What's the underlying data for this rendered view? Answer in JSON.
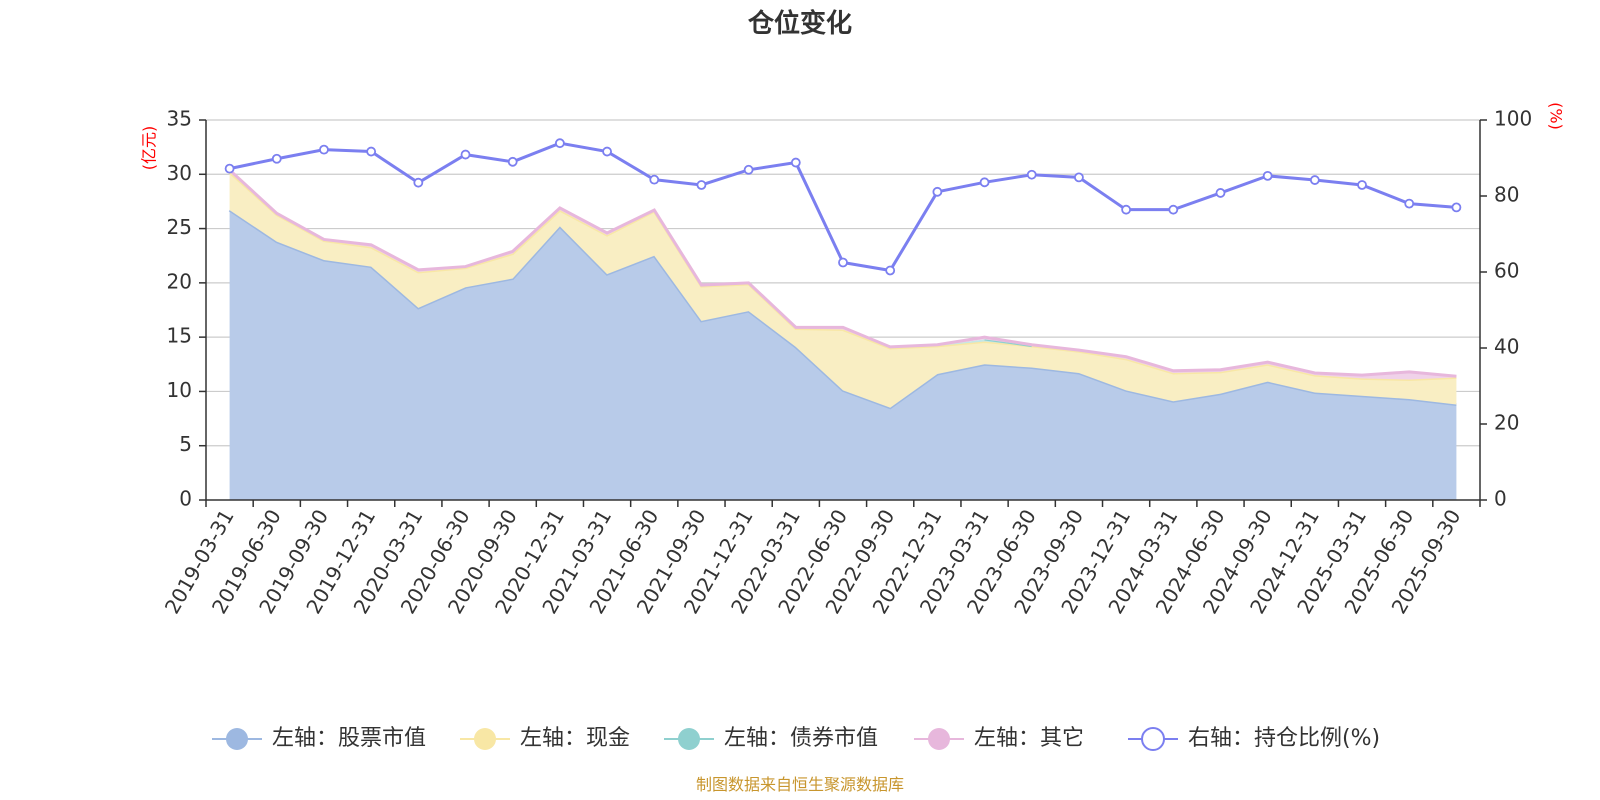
{
  "chart_data": {
    "type": "area",
    "title": "仓位变化",
    "left_axis_unit": "(亿元)",
    "right_axis_unit": "(%)",
    "ylim_left": [
      0,
      35
    ],
    "yticks_left": [
      0,
      5,
      10,
      15,
      20,
      25,
      30,
      35
    ],
    "ylim_right": [
      0,
      100
    ],
    "yticks_right": [
      0,
      20,
      40,
      60,
      80,
      100
    ],
    "categories": [
      "2019-03-31",
      "2019-06-30",
      "2019-09-30",
      "2019-12-31",
      "2020-03-31",
      "2020-06-30",
      "2020-09-30",
      "2020-12-31",
      "2021-03-31",
      "2021-06-30",
      "2021-09-30",
      "2021-12-31",
      "2022-03-31",
      "2022-06-30",
      "2022-09-30",
      "2022-12-31",
      "2023-03-31",
      "2023-06-30",
      "2023-09-30",
      "2023-12-31",
      "2024-03-31",
      "2024-06-30",
      "2024-09-30",
      "2024-12-31",
      "2025-03-31",
      "2025-06-30",
      "2025-09-30"
    ],
    "series": [
      {
        "name": "左轴：股票市值",
        "axis": "left",
        "color": "#9db8e1",
        "fill": "#b8cbe9",
        "values": [
          26.7,
          23.8,
          22.1,
          21.5,
          17.7,
          19.6,
          20.4,
          25.2,
          20.8,
          22.5,
          16.5,
          17.4,
          14.1,
          10.1,
          8.5,
          11.6,
          12.5,
          12.2,
          11.7,
          10.1,
          9.1,
          9.8,
          10.9,
          9.9,
          9.6,
          9.3,
          8.8
        ]
      },
      {
        "name": "左轴：现金",
        "axis": "left",
        "color": "#f8e7a5",
        "fill": "#f9eec3",
        "values": [
          3.5,
          2.5,
          1.8,
          1.8,
          3.3,
          1.8,
          2.3,
          1.5,
          3.6,
          4.1,
          3.2,
          2.5,
          1.7,
          5.6,
          5.5,
          2.6,
          2.1,
          2.0,
          2.0,
          2.9,
          2.6,
          2.0,
          1.6,
          1.6,
          1.6,
          1.8,
          2.5
        ]
      },
      {
        "name": "左轴：债券市值",
        "axis": "left",
        "color": "#8fd0cf",
        "fill": "#c5e7e6",
        "values": [
          0,
          0,
          0,
          0,
          0,
          0,
          0,
          0,
          0,
          0,
          0,
          0,
          0,
          0,
          0,
          0,
          0.2,
          0,
          0,
          0,
          0,
          0,
          0,
          0,
          0,
          0,
          0
        ]
      },
      {
        "name": "左轴：其它",
        "axis": "left",
        "color": "#e7b7dc",
        "fill": "#f0d2e9",
        "values": [
          0.2,
          0.1,
          0.1,
          0.2,
          0.2,
          0.1,
          0.2,
          0.2,
          0.2,
          0.1,
          0.1,
          0.1,
          0.1,
          0.2,
          0.1,
          0.1,
          0.2,
          0.1,
          0.1,
          0.2,
          0.2,
          0.2,
          0.2,
          0.2,
          0.3,
          0.7,
          0.1
        ]
      },
      {
        "name": "右轴：持仓比例(%)",
        "axis": "right",
        "color": "#7b7ff0",
        "values": [
          87.2,
          89.8,
          92.2,
          91.7,
          83.5,
          90.9,
          89.0,
          93.9,
          91.7,
          84.3,
          82.9,
          86.9,
          88.8,
          62.5,
          60.4,
          81.1,
          83.6,
          85.6,
          84.9,
          76.4,
          76.4,
          80.8,
          85.3,
          84.2,
          82.9,
          78.0,
          77.0
        ]
      }
    ],
    "legend_position": "bottom",
    "grid": true
  },
  "source_note": "制图数据来自恒生聚源数据库"
}
